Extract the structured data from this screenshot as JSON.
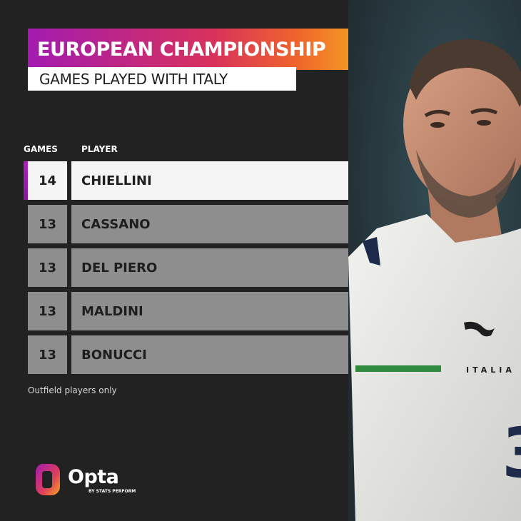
{
  "title": "EUROPEAN CHAMPIONSHIP",
  "subtitle": "GAMES PLAYED WITH ITALY",
  "columns": {
    "games": "GAMES",
    "player": "PLAYER"
  },
  "rows": [
    {
      "games": "14",
      "player": "CHIELLINI"
    },
    {
      "games": "13",
      "player": "CASSANO"
    },
    {
      "games": "13",
      "player": "DEL PIERO"
    },
    {
      "games": "13",
      "player": "MALDINI"
    },
    {
      "games": "13",
      "player": "BONUCCI"
    }
  ],
  "footnote": "Outfield players only",
  "logo": {
    "name": "Opta",
    "tagline": "BY STATS PERFORM"
  },
  "photo": {
    "shirt_text": "ITALIA",
    "shirt_number": "3"
  },
  "colors": {
    "background": "#222222",
    "gradient_start": "#a21bb0",
    "gradient_end": "#f5a623",
    "highlight_row": "#f5f5f5",
    "normal_row": "#8e8e8e",
    "accent": "#b01fc0"
  },
  "icons": [
    "opta-logo-icon",
    "puma-logo-icon"
  ]
}
